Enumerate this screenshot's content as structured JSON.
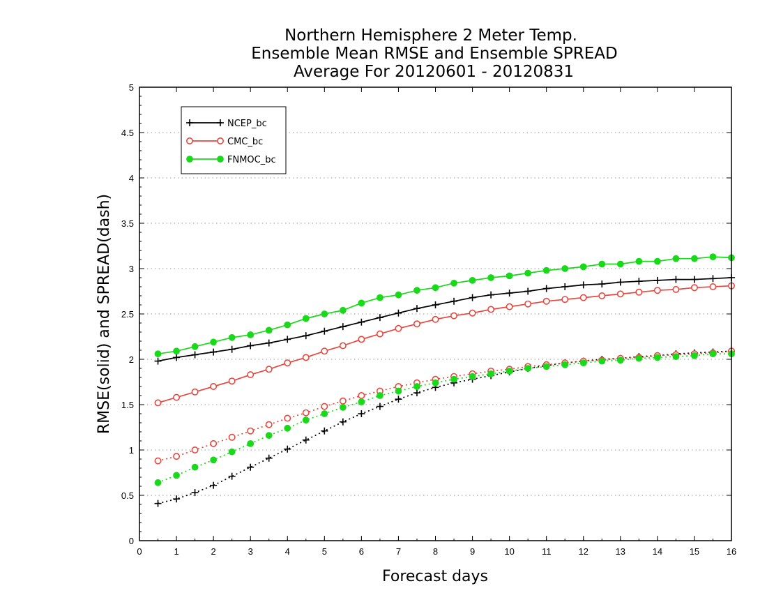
{
  "chart_data": {
    "type": "line",
    "title_lines": [
      "Northern Hemisphere 2 Meter Temp.",
      "Ensemble Mean RMSE and Ensemble SPREAD",
      "Average For 20120601 - 20120831"
    ],
    "xlabel": "Forecast days",
    "ylabel": "RMSE(solid) and SPREAD(dash)",
    "xlim": [
      0,
      16
    ],
    "ylim": [
      0,
      5
    ],
    "xticks": [
      "0",
      "1",
      "2",
      "3",
      "4",
      "5",
      "6",
      "7",
      "8",
      "9",
      "10",
      "11",
      "12",
      "13",
      "14",
      "15",
      "16"
    ],
    "yticks": [
      "0",
      "0.5",
      "1",
      "1.5",
      "2",
      "2.5",
      "3",
      "3.5",
      "4",
      "4.5",
      "5"
    ],
    "grid": "horizontal dotted",
    "legend_position": "top-left",
    "x": [
      0.5,
      1,
      1.5,
      2,
      2.5,
      3,
      3.5,
      4,
      4.5,
      5,
      5.5,
      6,
      6.5,
      7,
      7.5,
      8,
      8.5,
      9,
      9.5,
      10,
      10.5,
      11,
      11.5,
      12,
      12.5,
      13,
      13.5,
      14,
      14.5,
      15,
      15.5,
      16
    ],
    "series": [
      {
        "name": "NCEP_bc",
        "color": "#000000",
        "marker": "plus",
        "rmse": [
          1.98,
          2.02,
          2.05,
          2.08,
          2.11,
          2.15,
          2.18,
          2.22,
          2.26,
          2.31,
          2.36,
          2.41,
          2.46,
          2.51,
          2.56,
          2.6,
          2.64,
          2.68,
          2.71,
          2.73,
          2.75,
          2.78,
          2.8,
          2.82,
          2.83,
          2.85,
          2.86,
          2.87,
          2.88,
          2.88,
          2.89,
          2.9
        ],
        "spread": [
          0.41,
          0.46,
          0.53,
          0.61,
          0.71,
          0.81,
          0.91,
          1.01,
          1.11,
          1.21,
          1.31,
          1.4,
          1.48,
          1.56,
          1.63,
          1.69,
          1.74,
          1.78,
          1.82,
          1.86,
          1.9,
          1.93,
          1.96,
          1.98,
          2.0,
          2.01,
          2.03,
          2.04,
          2.06,
          2.07,
          2.08,
          2.09
        ]
      },
      {
        "name": "CMC_bc",
        "color": "#e8473f",
        "marker": "open-circle",
        "rmse": [
          1.52,
          1.58,
          1.64,
          1.7,
          1.76,
          1.83,
          1.89,
          1.96,
          2.02,
          2.09,
          2.15,
          2.22,
          2.28,
          2.34,
          2.39,
          2.44,
          2.48,
          2.51,
          2.55,
          2.58,
          2.61,
          2.64,
          2.66,
          2.68,
          2.7,
          2.72,
          2.74,
          2.76,
          2.77,
          2.79,
          2.8,
          2.81
        ],
        "spread": [
          0.88,
          0.93,
          1.0,
          1.07,
          1.14,
          1.21,
          1.28,
          1.35,
          1.41,
          1.48,
          1.54,
          1.6,
          1.65,
          1.7,
          1.74,
          1.78,
          1.81,
          1.84,
          1.87,
          1.89,
          1.92,
          1.94,
          1.96,
          1.98,
          1.99,
          2.01,
          2.02,
          2.04,
          2.05,
          2.06,
          2.07,
          2.09
        ]
      },
      {
        "name": "FNMOC_bc",
        "color": "#1ad81a",
        "marker": "filled-circle",
        "rmse": [
          2.06,
          2.09,
          2.14,
          2.19,
          2.24,
          2.27,
          2.32,
          2.38,
          2.45,
          2.5,
          2.54,
          2.62,
          2.68,
          2.71,
          2.76,
          2.79,
          2.84,
          2.87,
          2.9,
          2.92,
          2.95,
          2.98,
          3.0,
          3.02,
          3.05,
          3.05,
          3.08,
          3.08,
          3.11,
          3.11,
          3.13,
          3.12
        ],
        "spread": [
          0.64,
          0.72,
          0.81,
          0.89,
          0.98,
          1.07,
          1.16,
          1.24,
          1.33,
          1.4,
          1.47,
          1.53,
          1.6,
          1.65,
          1.7,
          1.74,
          1.78,
          1.81,
          1.84,
          1.87,
          1.9,
          1.92,
          1.94,
          1.96,
          1.98,
          1.99,
          2.01,
          2.02,
          2.03,
          2.04,
          2.06,
          2.06
        ]
      }
    ]
  }
}
